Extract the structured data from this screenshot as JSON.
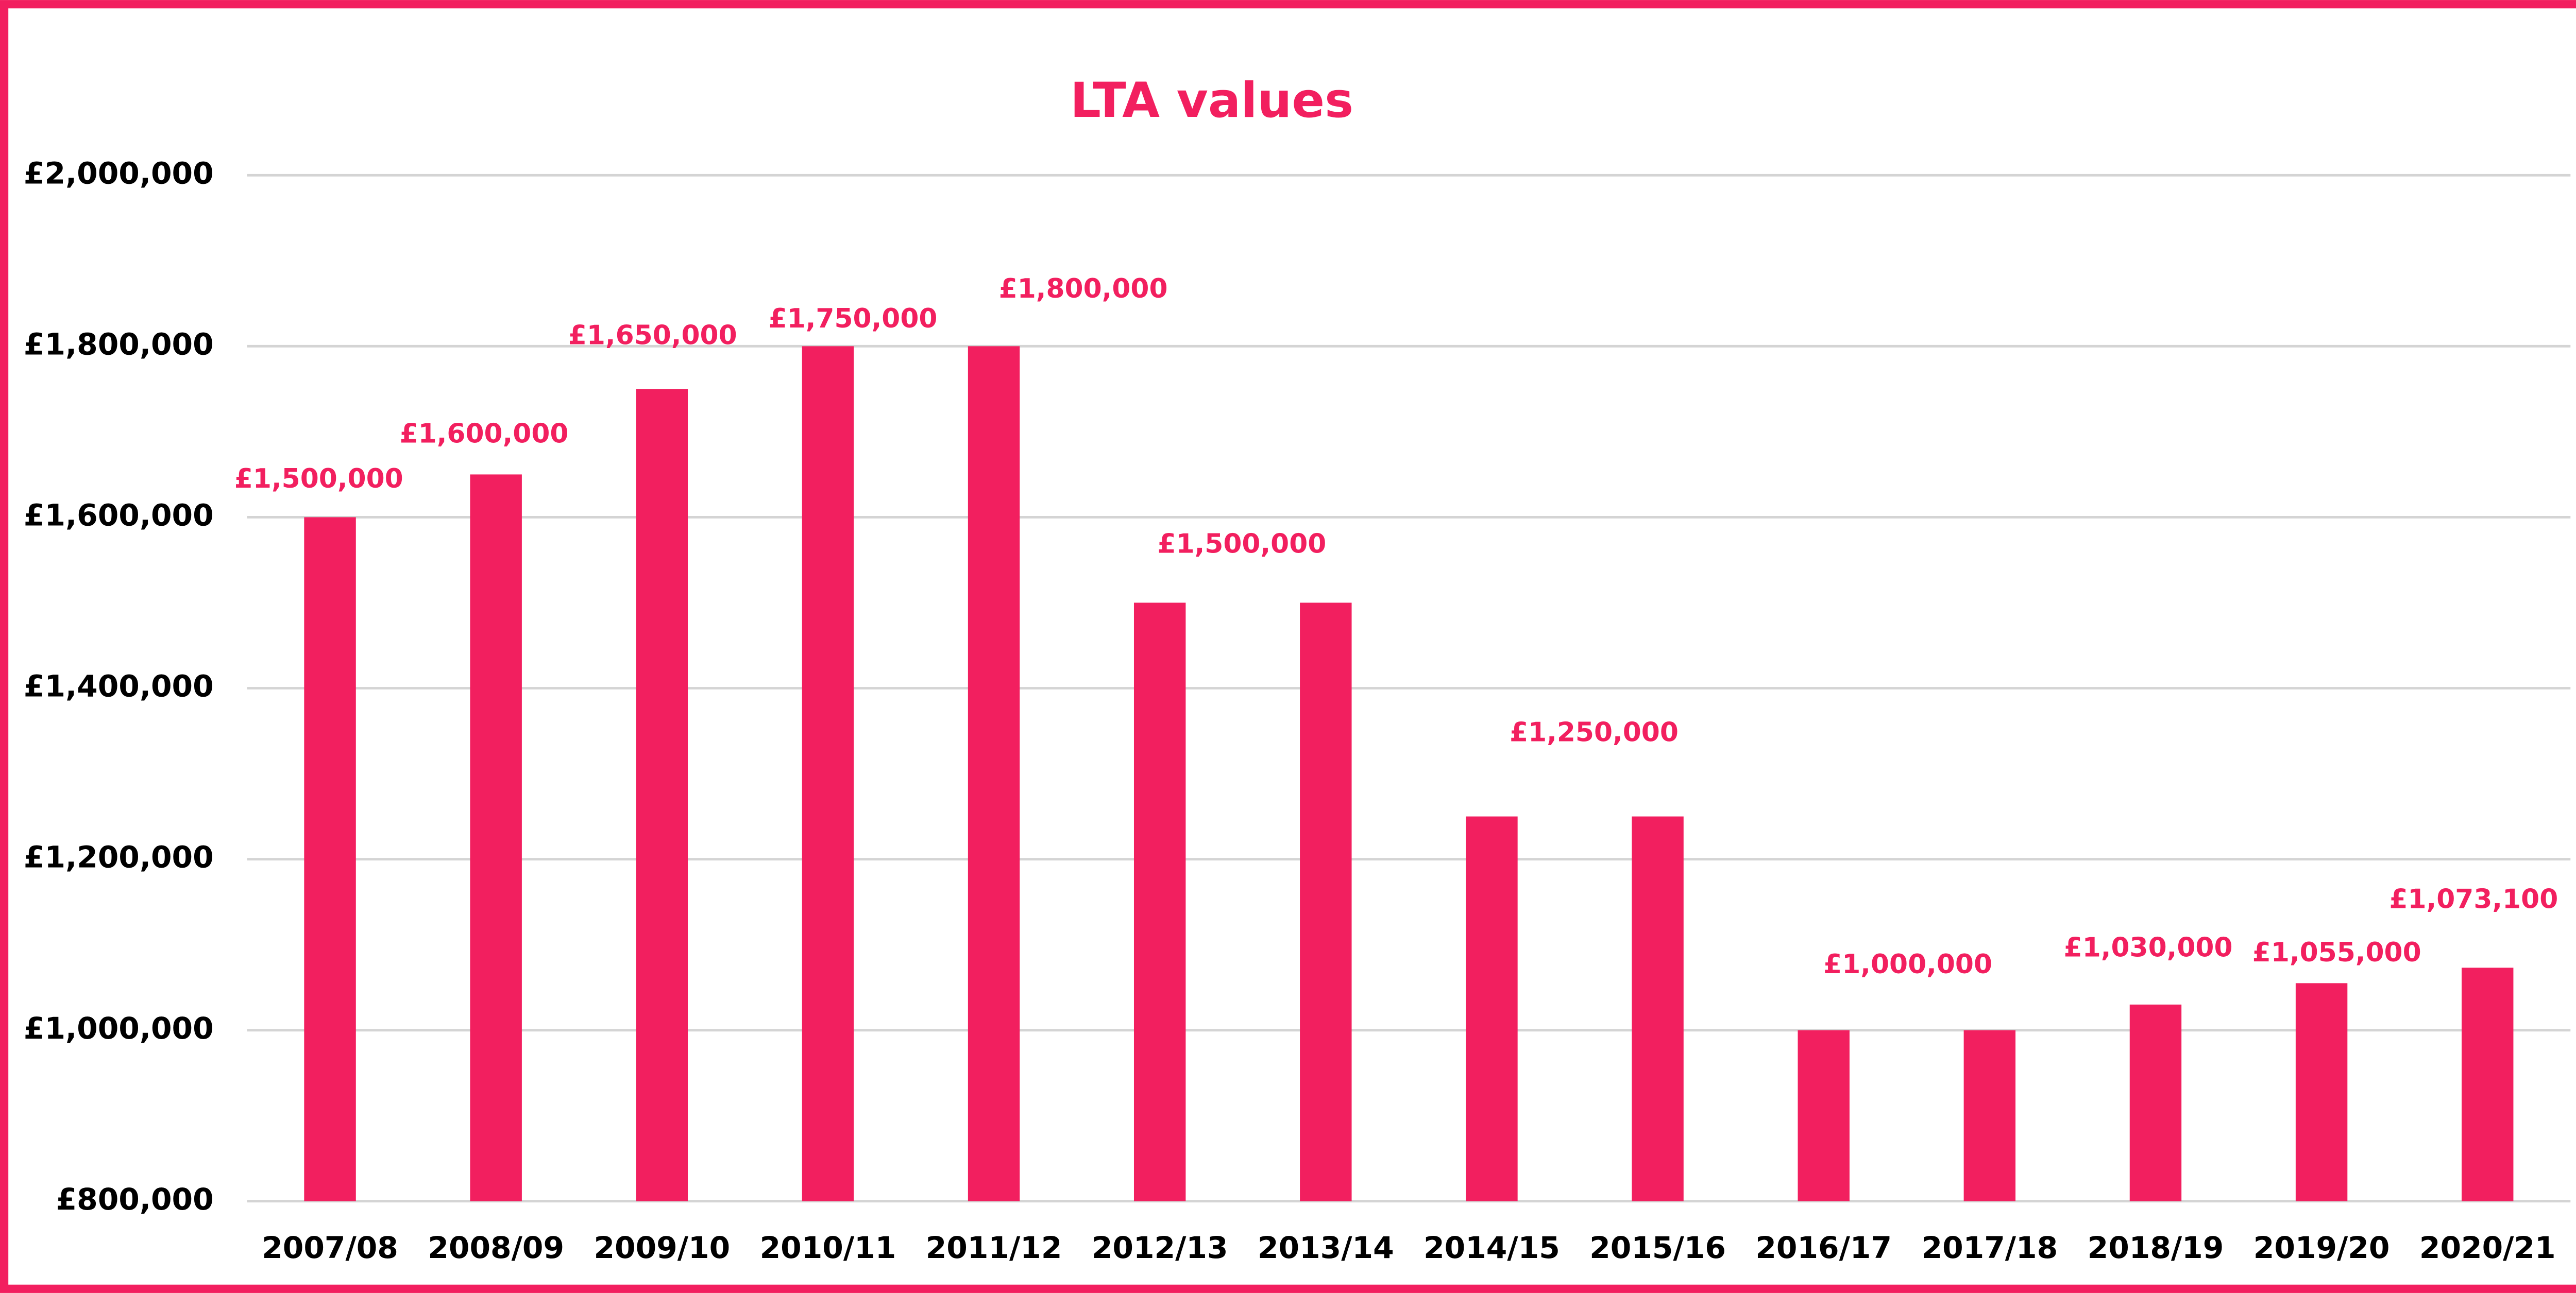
{
  "chart_data": {
    "type": "bar",
    "title": "LTA values",
    "categories": [
      "2007/08",
      "2008/09",
      "2009/10",
      "2010/11",
      "2011/12",
      "2012/13",
      "2013/14",
      "2014/15",
      "2015/16",
      "2016/17",
      "2017/18",
      "2018/19",
      "2019/20",
      "2020/21"
    ],
    "values": [
      1600000,
      1650000,
      1750000,
      1800000,
      1800000,
      1500000,
      1500000,
      1250000,
      1250000,
      1000000,
      1000000,
      1030000,
      1055000,
      1073100
    ],
    "color": "#f21f5f",
    "ylim": [
      800000,
      2000000
    ],
    "yticks": [
      {
        "value": 800000,
        "label": "£800,000"
      },
      {
        "value": 1000000,
        "label": "£1,000,000"
      },
      {
        "value": 1200000,
        "label": "£1,200,000"
      },
      {
        "value": 1400000,
        "label": "£1,400,000"
      },
      {
        "value": 1600000,
        "label": "£1,600,000"
      },
      {
        "value": 1800000,
        "label": "£1,800,000"
      },
      {
        "value": 2000000,
        "label": "£2,000,000"
      }
    ],
    "grid": true,
    "annotations": [
      "£1,500,000",
      "£1,600,000",
      "£1,650,000",
      "£1,750,000",
      "£1,800,000",
      "£1,500,000",
      "£1,250,000",
      "£1,000,000",
      "£1,030,000",
      "£1,055,000",
      "£1,073,100"
    ]
  }
}
